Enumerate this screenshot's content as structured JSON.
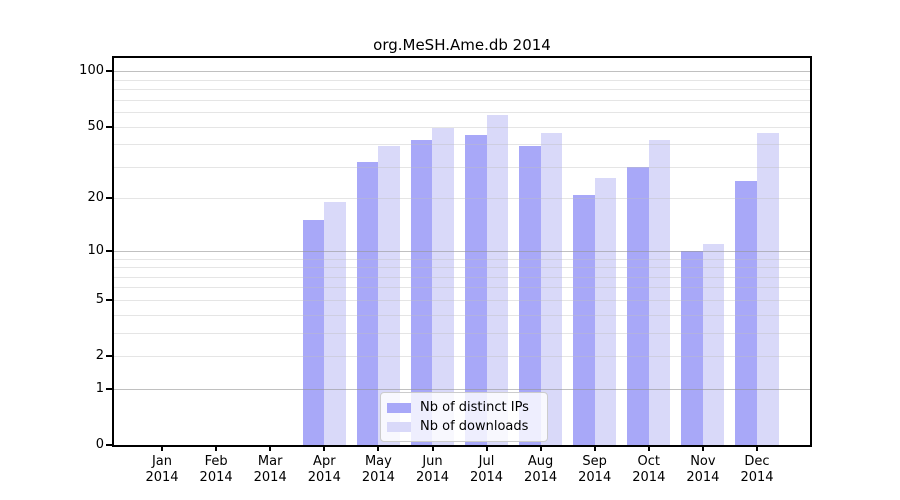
{
  "title": "org.MeSH.Ame.db 2014",
  "legend": {
    "items": [
      {
        "label": "Nb of distinct IPs",
        "color": "#a8a8f8"
      },
      {
        "label": "Nb of downloads",
        "color": "#d9d9f9"
      }
    ]
  },
  "chart_data": {
    "type": "bar",
    "title": "org.MeSH.Ame.db 2014",
    "categories": [
      "Jan 2014",
      "Feb 2014",
      "Mar 2014",
      "Apr 2014",
      "May 2014",
      "Jun 2014",
      "Jul 2014",
      "Aug 2014",
      "Sep 2014",
      "Oct 2014",
      "Nov 2014",
      "Dec 2014"
    ],
    "series": [
      {
        "name": "Nb of distinct IPs",
        "color": "#a8a8f8",
        "values": [
          0,
          0,
          0,
          15,
          32,
          42,
          45,
          39,
          21,
          30,
          10,
          25
        ]
      },
      {
        "name": "Nb of downloads",
        "color": "#d9d9f9",
        "values": [
          0,
          0,
          0,
          19,
          39,
          49,
          58,
          46,
          26,
          42,
          11,
          46
        ]
      }
    ],
    "xlabel": "",
    "ylabel": "",
    "yscale": "log1p",
    "y_ticks": [
      0,
      1,
      2,
      5,
      10,
      20,
      50,
      100
    ],
    "y_minor_gridlines": [
      2,
      3,
      4,
      5,
      6,
      7,
      8,
      9,
      20,
      30,
      40,
      50,
      60,
      70,
      80,
      90
    ],
    "y_major_gridlines": [
      1,
      10,
      100
    ],
    "ylim": [
      0,
      118
    ],
    "grid": true,
    "legend_position": "lower center"
  }
}
